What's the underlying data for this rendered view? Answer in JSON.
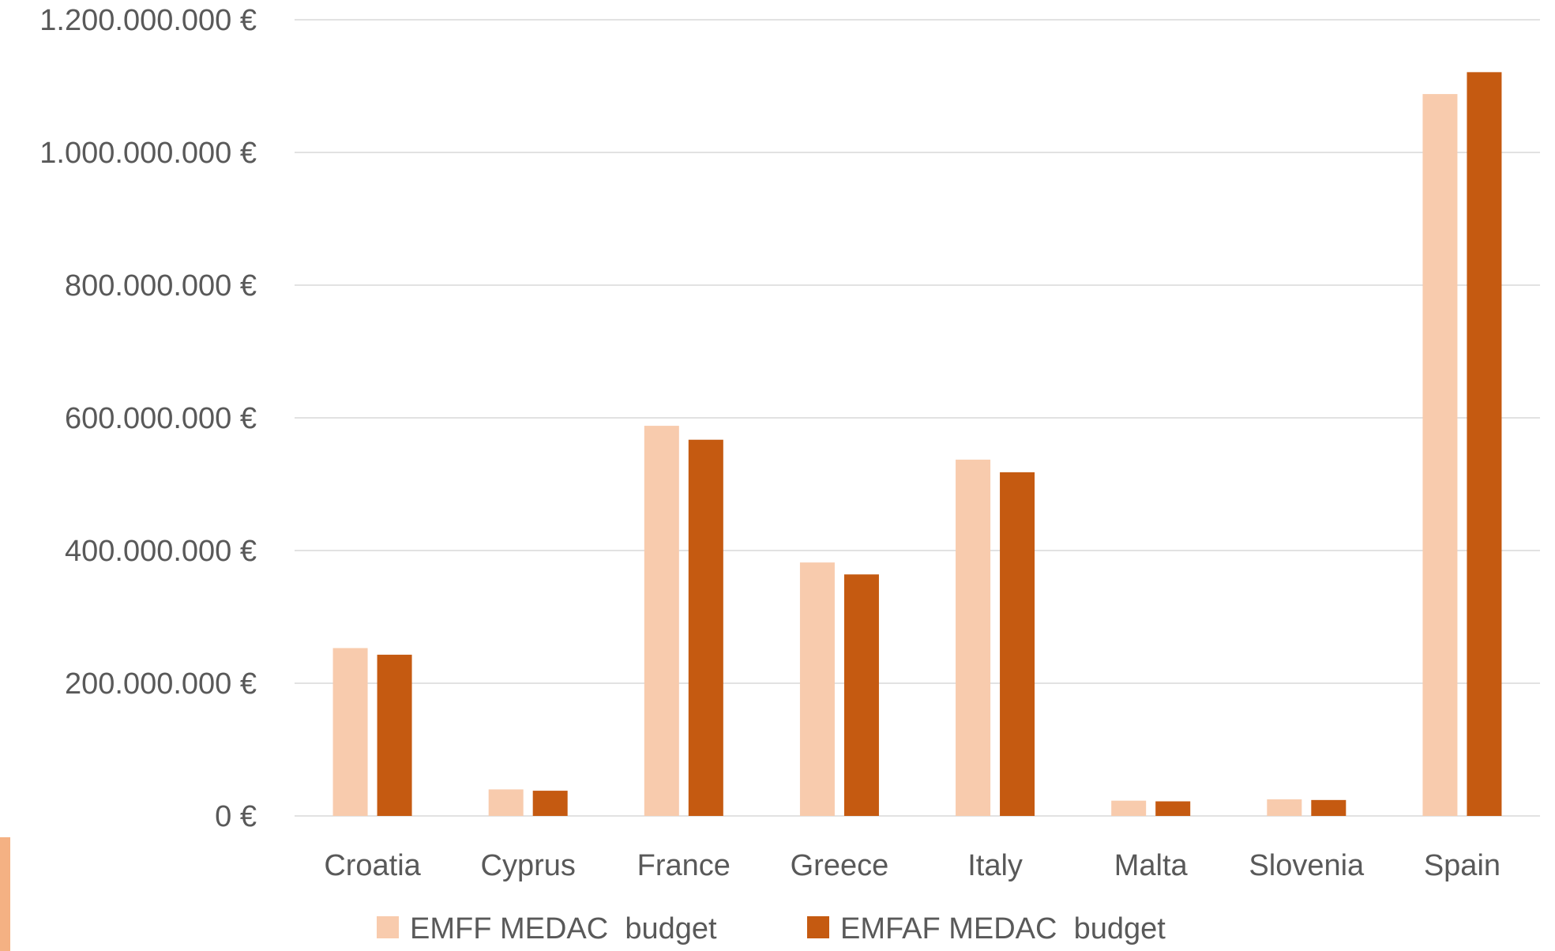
{
  "chart_data": {
    "type": "bar",
    "categories": [
      "Croatia",
      "Cyprus",
      "France",
      "Greece",
      "Italy",
      "Malta",
      "Slovenia",
      "Spain"
    ],
    "series": [
      {
        "name": "EMFF MEDAC  budget",
        "color": "#f8cbad",
        "values": [
          253000000,
          40000000,
          588000000,
          382000000,
          537000000,
          23000000,
          25000000,
          1088000000
        ]
      },
      {
        "name": "EMFAF MEDAC  budget",
        "color": "#c55a11",
        "values": [
          243000000,
          38000000,
          567000000,
          364000000,
          518000000,
          22000000,
          24000000,
          1121000000
        ]
      }
    ],
    "y_ticks": [
      {
        "value": 0,
        "label": "0 €"
      },
      {
        "value": 200000000,
        "label": "200.000.000 €"
      },
      {
        "value": 400000000,
        "label": "400.000.000 €"
      },
      {
        "value": 600000000,
        "label": "600.000.000 €"
      },
      {
        "value": 800000000,
        "label": "800.000.000 €"
      },
      {
        "value": 1000000000,
        "label": "1.000.000.000 €"
      },
      {
        "value": 1200000000,
        "label": "1.200.000.000 €"
      }
    ],
    "ylim": [
      0,
      1200000000
    ],
    "grid": true,
    "legend": "bottom",
    "side_marker_color": "#f4b183"
  }
}
